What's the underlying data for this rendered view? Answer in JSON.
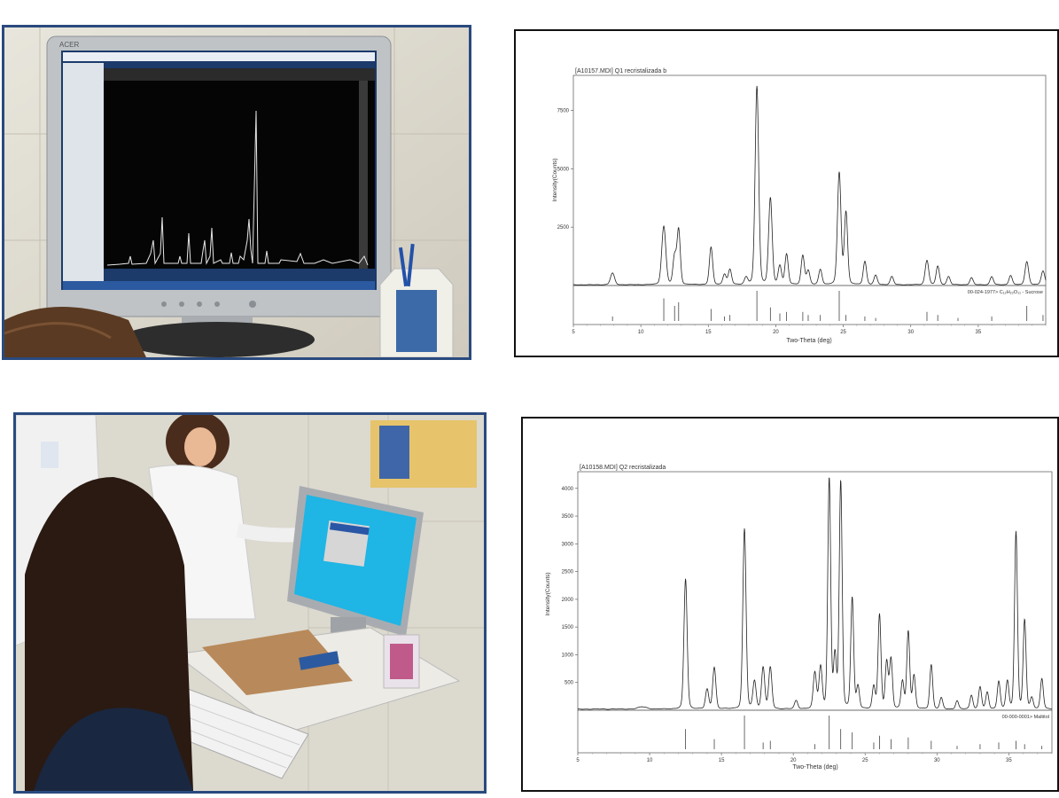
{
  "photos": {
    "top": {
      "monitor_brand": "ACER"
    },
    "bottom": {}
  },
  "chart_data": [
    {
      "type": "line",
      "title": "[A10157.MDI] Q1 recristalizada b",
      "xlabel": "Two-Theta (deg)",
      "ylabel": "Intensity(Counts)",
      "xlim": [
        5,
        40
      ],
      "ylim": [
        0,
        9000
      ],
      "xticks": [
        5,
        10,
        15,
        20,
        25,
        30,
        35
      ],
      "yticks": [
        2500,
        5000,
        7500
      ],
      "reference_label": "00-024-1977> C₁₂H₂₂O₁₁ - Sucrose",
      "baseline": 30,
      "peaks": [
        {
          "x": 7.9,
          "y": 500,
          "w": 0.15
        },
        {
          "x": 11.7,
          "y": 2500,
          "w": 0.15
        },
        {
          "x": 12.5,
          "y": 1200,
          "w": 0.12
        },
        {
          "x": 12.8,
          "y": 2350,
          "w": 0.12
        },
        {
          "x": 15.2,
          "y": 1600,
          "w": 0.12
        },
        {
          "x": 16.2,
          "y": 450,
          "w": 0.12
        },
        {
          "x": 16.6,
          "y": 650,
          "w": 0.12
        },
        {
          "x": 17.8,
          "y": 300,
          "w": 0.12
        },
        {
          "x": 18.6,
          "y": 8500,
          "w": 0.13
        },
        {
          "x": 19.6,
          "y": 3700,
          "w": 0.13
        },
        {
          "x": 20.3,
          "y": 800,
          "w": 0.12
        },
        {
          "x": 20.8,
          "y": 1300,
          "w": 0.12
        },
        {
          "x": 22.0,
          "y": 1250,
          "w": 0.12
        },
        {
          "x": 22.4,
          "y": 600,
          "w": 0.12
        },
        {
          "x": 23.3,
          "y": 650,
          "w": 0.12
        },
        {
          "x": 24.7,
          "y": 4800,
          "w": 0.13
        },
        {
          "x": 25.2,
          "y": 3100,
          "w": 0.12
        },
        {
          "x": 26.6,
          "y": 1000,
          "w": 0.12
        },
        {
          "x": 27.4,
          "y": 400,
          "w": 0.12
        },
        {
          "x": 28.6,
          "y": 350,
          "w": 0.12
        },
        {
          "x": 31.2,
          "y": 1050,
          "w": 0.13
        },
        {
          "x": 32.0,
          "y": 800,
          "w": 0.12
        },
        {
          "x": 32.8,
          "y": 350,
          "w": 0.12
        },
        {
          "x": 34.5,
          "y": 300,
          "w": 0.12
        },
        {
          "x": 36.0,
          "y": 350,
          "w": 0.12
        },
        {
          "x": 37.4,
          "y": 400,
          "w": 0.12
        },
        {
          "x": 38.6,
          "y": 1000,
          "w": 0.13
        },
        {
          "x": 39.8,
          "y": 600,
          "w": 0.13
        }
      ],
      "sticks": [
        {
          "x": 7.9,
          "h": 0.15
        },
        {
          "x": 11.7,
          "h": 0.75
        },
        {
          "x": 12.5,
          "h": 0.5
        },
        {
          "x": 12.8,
          "h": 0.62
        },
        {
          "x": 15.2,
          "h": 0.4
        },
        {
          "x": 16.2,
          "h": 0.15
        },
        {
          "x": 16.6,
          "h": 0.2
        },
        {
          "x": 18.6,
          "h": 1.0
        },
        {
          "x": 19.6,
          "h": 0.45
        },
        {
          "x": 20.3,
          "h": 0.25
        },
        {
          "x": 20.8,
          "h": 0.3
        },
        {
          "x": 22.0,
          "h": 0.3
        },
        {
          "x": 22.4,
          "h": 0.2
        },
        {
          "x": 23.3,
          "h": 0.2
        },
        {
          "x": 24.7,
          "h": 1.0
        },
        {
          "x": 25.2,
          "h": 0.2
        },
        {
          "x": 26.6,
          "h": 0.15
        },
        {
          "x": 27.4,
          "h": 0.1
        },
        {
          "x": 31.2,
          "h": 0.3
        },
        {
          "x": 32.0,
          "h": 0.2
        },
        {
          "x": 33.5,
          "h": 0.1
        },
        {
          "x": 36.0,
          "h": 0.15
        },
        {
          "x": 38.6,
          "h": 0.5
        },
        {
          "x": 39.8,
          "h": 0.2
        }
      ]
    },
    {
      "type": "line",
      "title": "[A10158.MDI] Q2 recristalizada",
      "xlabel": "Two-Theta (deg)",
      "ylabel": "Intensity(Counts)",
      "xlim": [
        5,
        38
      ],
      "ylim": [
        0,
        4300
      ],
      "xticks": [
        5,
        10,
        15,
        20,
        25,
        30,
        35
      ],
      "yticks": [
        500,
        1000,
        1500,
        2000,
        2500,
        3000,
        3500,
        4000
      ],
      "reference_label": "00-000-0001> Maltitol",
      "baseline": 20,
      "peaks": [
        {
          "x": 9.5,
          "y": 40,
          "w": 0.3
        },
        {
          "x": 12.5,
          "y": 2350,
          "w": 0.11
        },
        {
          "x": 14.0,
          "y": 350,
          "w": 0.11
        },
        {
          "x": 14.5,
          "y": 750,
          "w": 0.11
        },
        {
          "x": 16.6,
          "y": 3250,
          "w": 0.11
        },
        {
          "x": 17.3,
          "y": 500,
          "w": 0.11
        },
        {
          "x": 17.9,
          "y": 750,
          "w": 0.11
        },
        {
          "x": 18.4,
          "y": 750,
          "w": 0.11
        },
        {
          "x": 20.2,
          "y": 150,
          "w": 0.11
        },
        {
          "x": 21.5,
          "y": 650,
          "w": 0.11
        },
        {
          "x": 21.9,
          "y": 750,
          "w": 0.11
        },
        {
          "x": 22.5,
          "y": 4150,
          "w": 0.1
        },
        {
          "x": 22.9,
          "y": 950,
          "w": 0.1
        },
        {
          "x": 23.3,
          "y": 4100,
          "w": 0.1
        },
        {
          "x": 24.1,
          "y": 2000,
          "w": 0.1
        },
        {
          "x": 24.5,
          "y": 400,
          "w": 0.1
        },
        {
          "x": 25.6,
          "y": 400,
          "w": 0.1
        },
        {
          "x": 26.0,
          "y": 1700,
          "w": 0.1
        },
        {
          "x": 26.5,
          "y": 850,
          "w": 0.1
        },
        {
          "x": 26.8,
          "y": 900,
          "w": 0.1
        },
        {
          "x": 27.6,
          "y": 500,
          "w": 0.1
        },
        {
          "x": 28.0,
          "y": 1400,
          "w": 0.1
        },
        {
          "x": 28.4,
          "y": 600,
          "w": 0.1
        },
        {
          "x": 29.6,
          "y": 800,
          "w": 0.1
        },
        {
          "x": 30.3,
          "y": 200,
          "w": 0.1
        },
        {
          "x": 31.4,
          "y": 150,
          "w": 0.1
        },
        {
          "x": 32.4,
          "y": 250,
          "w": 0.1
        },
        {
          "x": 33.0,
          "y": 400,
          "w": 0.1
        },
        {
          "x": 33.5,
          "y": 300,
          "w": 0.1
        },
        {
          "x": 34.3,
          "y": 500,
          "w": 0.1
        },
        {
          "x": 34.9,
          "y": 500,
          "w": 0.1
        },
        {
          "x": 35.5,
          "y": 3200,
          "w": 0.1
        },
        {
          "x": 36.1,
          "y": 1600,
          "w": 0.1
        },
        {
          "x": 36.6,
          "y": 200,
          "w": 0.1
        },
        {
          "x": 37.3,
          "y": 550,
          "w": 0.1
        }
      ],
      "sticks": [
        {
          "x": 12.5,
          "h": 0.6
        },
        {
          "x": 14.5,
          "h": 0.3
        },
        {
          "x": 16.6,
          "h": 1.0
        },
        {
          "x": 17.9,
          "h": 0.2
        },
        {
          "x": 18.4,
          "h": 0.25
        },
        {
          "x": 21.5,
          "h": 0.15
        },
        {
          "x": 22.5,
          "h": 1.0
        },
        {
          "x": 23.3,
          "h": 0.6
        },
        {
          "x": 24.1,
          "h": 0.5
        },
        {
          "x": 25.6,
          "h": 0.2
        },
        {
          "x": 26.0,
          "h": 0.4
        },
        {
          "x": 26.8,
          "h": 0.3
        },
        {
          "x": 28.0,
          "h": 0.35
        },
        {
          "x": 29.6,
          "h": 0.25
        },
        {
          "x": 31.4,
          "h": 0.1
        },
        {
          "x": 33.0,
          "h": 0.15
        },
        {
          "x": 34.3,
          "h": 0.2
        },
        {
          "x": 35.5,
          "h": 0.25
        },
        {
          "x": 36.1,
          "h": 0.15
        },
        {
          "x": 37.3,
          "h": 0.1
        }
      ]
    }
  ]
}
